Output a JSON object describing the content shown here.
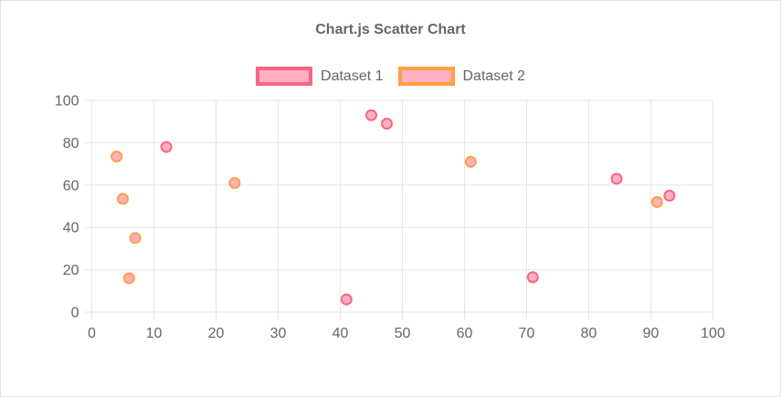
{
  "title": "Chart.js Scatter Chart",
  "colors": {
    "text": "#666666",
    "grid": "#e6e6e6",
    "background": "#ffffff",
    "dataset1_border": "#ff6384",
    "dataset1_fill": "#ffb1c1",
    "dataset2_border": "#ff9f40",
    "dataset2_fill": "#ffb1c1"
  },
  "legend": [
    {
      "label": "Dataset 1",
      "border": "#ff6384",
      "fill": "#ffb1c1"
    },
    {
      "label": "Dataset 2",
      "border": "#ff9f40",
      "fill": "#ffb1c1"
    }
  ],
  "chart_data": {
    "type": "scatter",
    "title": "Chart.js Scatter Chart",
    "xlabel": "",
    "ylabel": "",
    "xlim": [
      0,
      100
    ],
    "ylim": [
      0,
      100
    ],
    "x_ticks": [
      0,
      10,
      20,
      30,
      40,
      50,
      60,
      70,
      80,
      90,
      100
    ],
    "y_ticks": [
      0,
      20,
      40,
      60,
      80,
      100
    ],
    "grid": true,
    "legend_position": "top",
    "series": [
      {
        "name": "Dataset 1",
        "border_color": "#ff6384",
        "fill_color": "#ffb1c1",
        "points": [
          {
            "x": 12,
            "y": 78
          },
          {
            "x": 41,
            "y": 6
          },
          {
            "x": 45,
            "y": 93
          },
          {
            "x": 47.5,
            "y": 89
          },
          {
            "x": 71,
            "y": 16.5
          },
          {
            "x": 84.5,
            "y": 63
          },
          {
            "x": 93,
            "y": 55
          }
        ]
      },
      {
        "name": "Dataset 2",
        "border_color": "#ff9f40",
        "fill_color": "#ffb1c1",
        "points": [
          {
            "x": 4,
            "y": 73.5
          },
          {
            "x": 5,
            "y": 53.5
          },
          {
            "x": 6,
            "y": 16
          },
          {
            "x": 7,
            "y": 35
          },
          {
            "x": 23,
            "y": 61
          },
          {
            "x": 61,
            "y": 71
          },
          {
            "x": 91,
            "y": 52
          }
        ]
      }
    ]
  }
}
